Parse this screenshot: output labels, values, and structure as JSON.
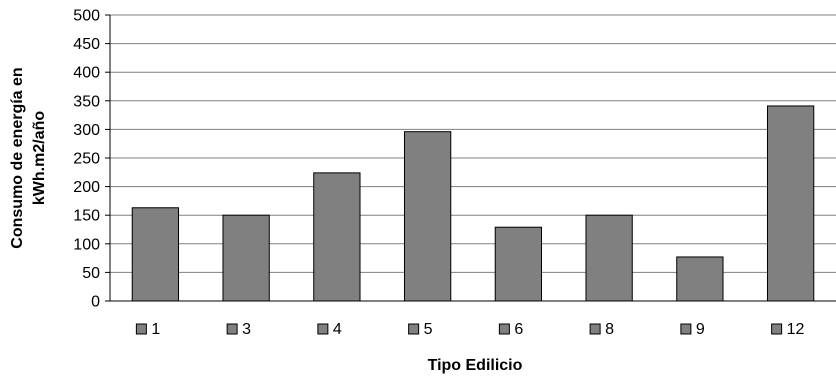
{
  "chart_data": {
    "type": "bar",
    "categories": [
      "1",
      "3",
      "4",
      "5",
      "6",
      "8",
      "9",
      "12"
    ],
    "values": [
      163,
      150,
      224,
      296,
      129,
      150,
      77,
      341
    ],
    "xlabel": "Tipo Edilicio",
    "ylabel": [
      "Consumo de energía en",
      "kWh.m2/año"
    ],
    "ylim": [
      0,
      500
    ],
    "yticks": [
      0,
      50,
      100,
      150,
      200,
      250,
      300,
      350,
      400,
      450,
      500
    ],
    "grid": true,
    "legend": "bottom",
    "colors": {
      "bar": "#808080",
      "bar_edge": "#000000",
      "grid": "#808080"
    }
  }
}
